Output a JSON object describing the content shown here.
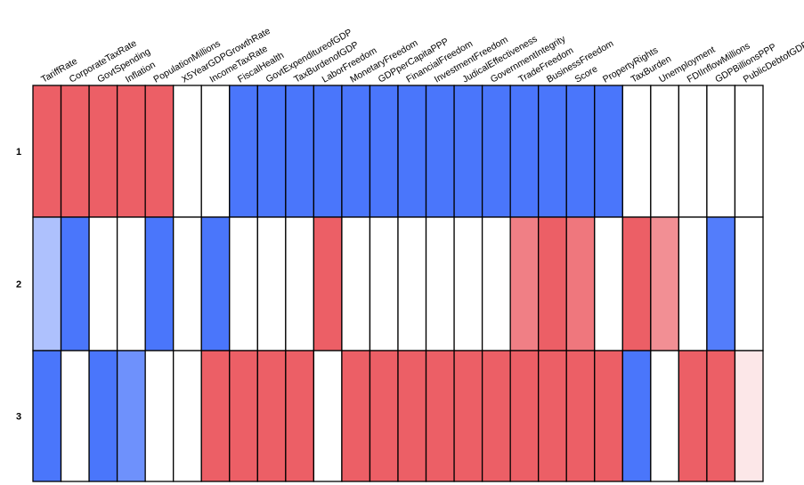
{
  "chart_data": {
    "type": "heatmap",
    "title": "",
    "columns": [
      "TariffRate",
      "CorporateTaxRate",
      "GovtSpending",
      "Inflation",
      "PopulationMillions",
      "X5YearGDPGrowthRate",
      "IncomeTaxRate",
      "FiscalHealth",
      "GovtExpenditureofGDP",
      "TaxBurdenofGDP",
      "LaborFreedom",
      "MonetaryFreedom",
      "GDPperCapitaPPP",
      "FinancialFreedom",
      "InvestmentFreedom",
      "JudicalEffectiveness",
      "GovernmentIntegrity",
      "TradeFreedom",
      "BusinessFreedom",
      "Score",
      "PropertyRights",
      "TaxBurden",
      "Unemployment",
      "FDIInflowMillions",
      "GDPBillionsPPP",
      "PublicDebtofGDP"
    ],
    "rows": [
      "1",
      "2",
      "3"
    ],
    "values": [
      [
        1.0,
        1.0,
        1.0,
        1.0,
        1.0,
        0.0,
        0.0,
        -1.0,
        -1.0,
        -1.0,
        -1.0,
        -1.0,
        -1.0,
        -1.0,
        -1.0,
        -1.0,
        -1.0,
        -1.0,
        -1.0,
        -1.0,
        -1.0,
        0.0,
        0.0,
        0.0,
        0.0,
        0.0
      ],
      [
        -0.45,
        -1.0,
        0.0,
        0.0,
        -1.0,
        0.0,
        -1.0,
        0.0,
        0.0,
        0.0,
        1.0,
        0.0,
        0.0,
        0.0,
        0.0,
        0.0,
        0.0,
        0.8,
        1.0,
        0.85,
        0.0,
        1.0,
        0.7,
        0.0,
        -0.95,
        0.0
      ],
      [
        -1.0,
        0.0,
        -1.0,
        -0.8,
        0.0,
        0.0,
        1.0,
        1.0,
        1.0,
        1.0,
        0.0,
        1.0,
        1.0,
        1.0,
        1.0,
        1.0,
        1.0,
        1.0,
        1.0,
        1.0,
        1.0,
        -1.0,
        0.0,
        1.0,
        1.0,
        0.15
      ]
    ],
    "color_low": "#4a76fb",
    "color_mid": "#ffffff",
    "color_high": "#ec5f66",
    "grid_color": "#000000"
  }
}
